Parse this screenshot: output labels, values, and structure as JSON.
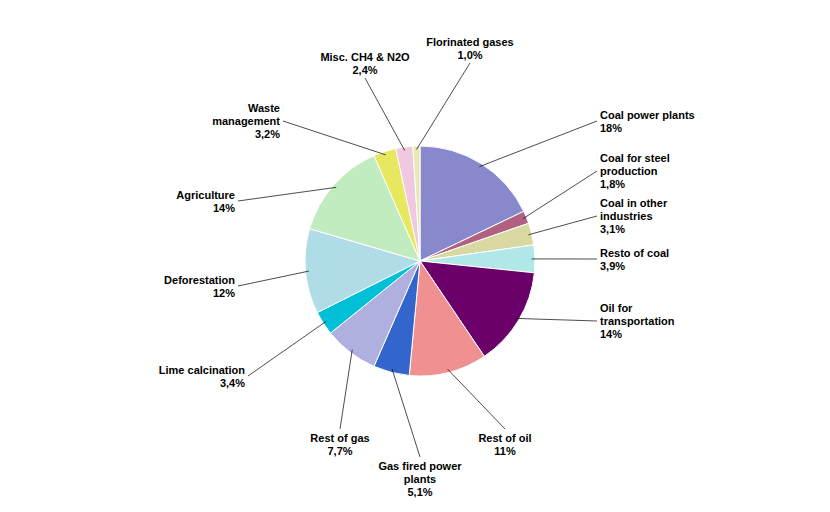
{
  "chart_data": {
    "type": "pie",
    "categories": [
      "Coal power plants",
      "Coal for steel\nproduction",
      "Coal in other\nindustries",
      "Resto of coal",
      "Oil for\ntransportation",
      "Rest of oil",
      "Gas fired power\nplants",
      "Rest of gas",
      "Lime calcination",
      "Deforestation",
      "Agriculture",
      "Waste\nmanagement",
      "Misc. CH4 & N2O",
      "Florinated gases"
    ],
    "values": [
      18,
      1.8,
      3.1,
      3.9,
      14,
      11,
      5.1,
      7.7,
      3.4,
      12,
      14,
      3.2,
      2.4,
      1.0
    ],
    "value_labels": [
      "18%",
      "1,8%",
      "3,1%",
      "3,9%",
      "14%",
      "11%",
      "5,1%",
      "7,7%",
      "3,4%",
      "12%",
      "14%",
      "3,2%",
      "2,4%",
      "1,0%"
    ],
    "colors": [
      "#8888cc",
      "#b06080",
      "#d8d8a0",
      "#b0e8e8",
      "#6b006b",
      "#f09090",
      "#3366cc",
      "#b0b0e0",
      "#00c0d8",
      "#b0dce8",
      "#c0ecc0",
      "#e8e860",
      "#f0c8e0",
      "#e8e8b0"
    ]
  }
}
